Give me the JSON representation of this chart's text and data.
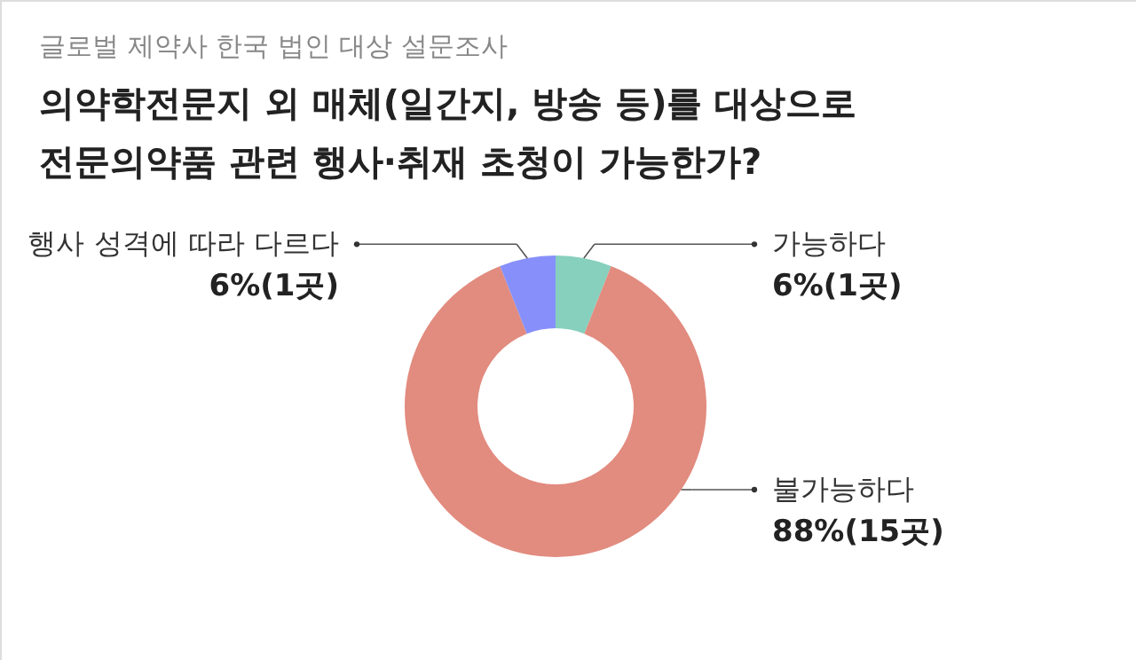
{
  "chart_data": {
    "type": "donut",
    "subtitle": "글로벌 제약사 한국 법인 대상 설문조사",
    "title": [
      "의약학전문지 외 매체(일간지, 방송 등)를 대상으로",
      "전문의약품 관련 행사·취재 초청이 가능한가?"
    ],
    "categories": [
      "가능하다",
      "불가능하다",
      "행사 성격에 따라 다르다"
    ],
    "values": [
      6,
      88,
      6
    ],
    "value_labels": [
      "6%(1곳)",
      "88%(15곳)",
      "6%(1곳)"
    ],
    "colors": [
      "#86d0bd",
      "#e28b7f",
      "#8790fa"
    ]
  }
}
